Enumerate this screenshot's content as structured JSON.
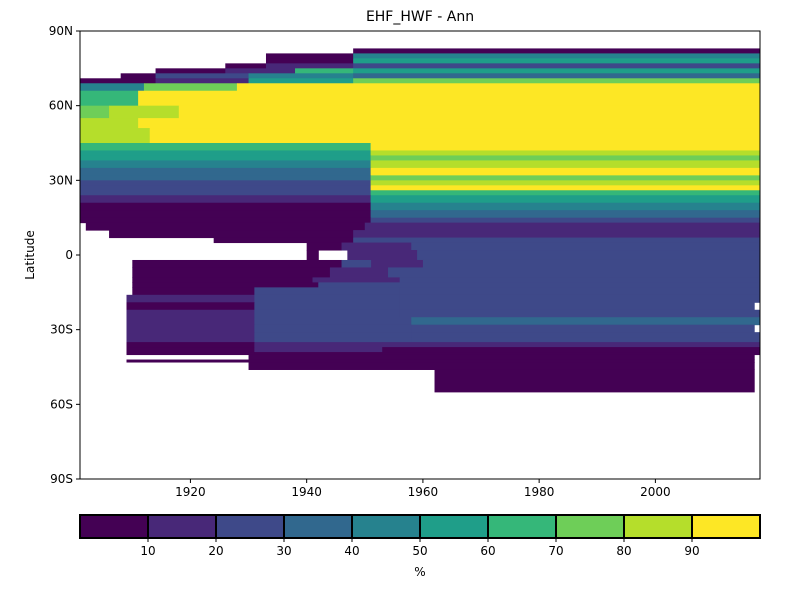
{
  "chart_data": {
    "type": "heatmap",
    "title": "EHF_HWF - Ann",
    "xlabel": "",
    "ylabel": "Latitude",
    "xlim": [
      1901,
      2018
    ],
    "ylim": [
      -90,
      90
    ],
    "x_ticks": [
      1920,
      1940,
      1960,
      1980,
      2000
    ],
    "y_ticks": [
      {
        "value": 90,
        "label": "90N"
      },
      {
        "value": 60,
        "label": "60N"
      },
      {
        "value": 30,
        "label": "30N"
      },
      {
        "value": 0,
        "label": "0"
      },
      {
        "value": -30,
        "label": "30S"
      },
      {
        "value": -60,
        "label": "60S"
      },
      {
        "value": -90,
        "label": "90S"
      }
    ],
    "grid": false,
    "colorbar": {
      "label": "%",
      "orientation": "horizontal",
      "range": [
        0,
        100
      ],
      "ticks": [
        10,
        20,
        30,
        40,
        50,
        60,
        70,
        80,
        90
      ],
      "colors": [
        "#440154",
        "#482878",
        "#3e4989",
        "#31688e",
        "#26828e",
        "#1f9e89",
        "#35b779",
        "#6ece58",
        "#b5de2b",
        "#fde725"
      ]
    },
    "rows": [
      {
        "lat_top": 83,
        "lat_bottom": 81,
        "segments": [
          {
            "x0": 1948,
            "x1": 2018,
            "v": 5
          }
        ]
      },
      {
        "lat_top": 81,
        "lat_bottom": 79,
        "segments": [
          {
            "x0": 1933,
            "x1": 1948,
            "v": 5
          },
          {
            "x0": 1948,
            "x1": 2018,
            "v": 45
          }
        ]
      },
      {
        "lat_top": 79,
        "lat_bottom": 77,
        "segments": [
          {
            "x0": 1933,
            "x1": 1948,
            "v": 5
          },
          {
            "x0": 1948,
            "x1": 2018,
            "v": 55
          }
        ]
      },
      {
        "lat_top": 77,
        "lat_bottom": 75,
        "segments": [
          {
            "x0": 1926,
            "x1": 1933,
            "v": 5
          },
          {
            "x0": 1933,
            "x1": 1948,
            "v": 15
          },
          {
            "x0": 1948,
            "x1": 2018,
            "v": 25
          }
        ]
      },
      {
        "lat_top": 75,
        "lat_bottom": 73,
        "segments": [
          {
            "x0": 1914,
            "x1": 1926,
            "v": 5
          },
          {
            "x0": 1926,
            "x1": 1938,
            "v": 15
          },
          {
            "x0": 1938,
            "x1": 1948,
            "v": 65
          },
          {
            "x0": 1948,
            "x1": 2018,
            "v": 55
          }
        ]
      },
      {
        "lat_top": 73,
        "lat_bottom": 71,
        "segments": [
          {
            "x0": 1908,
            "x1": 1914,
            "v": 5
          },
          {
            "x0": 1914,
            "x1": 1930,
            "v": 25
          },
          {
            "x0": 1930,
            "x1": 1948,
            "v": 45
          },
          {
            "x0": 1948,
            "x1": 2018,
            "v": 35
          }
        ]
      },
      {
        "lat_top": 71,
        "lat_bottom": 69,
        "segments": [
          {
            "x0": 1901,
            "x1": 1914,
            "v": 5
          },
          {
            "x0": 1914,
            "x1": 1930,
            "v": 15
          },
          {
            "x0": 1930,
            "x1": 1948,
            "v": 55
          },
          {
            "x0": 1948,
            "x1": 2018,
            "v": 75
          }
        ]
      },
      {
        "lat_top": 69,
        "lat_bottom": 66,
        "segments": [
          {
            "x0": 1901,
            "x1": 1912,
            "v": 45
          },
          {
            "x0": 1912,
            "x1": 1928,
            "v": 75
          },
          {
            "x0": 1928,
            "x1": 2018,
            "v": 95
          }
        ]
      },
      {
        "lat_top": 66,
        "lat_bottom": 60,
        "segments": [
          {
            "x0": 1901,
            "x1": 1911,
            "v": 65
          },
          {
            "x0": 1911,
            "x1": 2018,
            "v": 95
          }
        ]
      },
      {
        "lat_top": 60,
        "lat_bottom": 55,
        "segments": [
          {
            "x0": 1901,
            "x1": 1906,
            "v": 75
          },
          {
            "x0": 1906,
            "x1": 1918,
            "v": 85
          },
          {
            "x0": 1918,
            "x1": 2018,
            "v": 95
          }
        ]
      },
      {
        "lat_top": 55,
        "lat_bottom": 51,
        "segments": [
          {
            "x0": 1901,
            "x1": 1911,
            "v": 85
          },
          {
            "x0": 1911,
            "x1": 2018,
            "v": 95
          }
        ]
      },
      {
        "lat_top": 51,
        "lat_bottom": 45,
        "segments": [
          {
            "x0": 1901,
            "x1": 1913,
            "v": 85
          },
          {
            "x0": 1913,
            "x1": 2018,
            "v": 95
          }
        ]
      },
      {
        "lat_top": 45,
        "lat_bottom": 42,
        "segments": [
          {
            "x0": 1901,
            "x1": 1951,
            "v": 65
          },
          {
            "x0": 1951,
            "x1": 2018,
            "v": 95
          }
        ]
      },
      {
        "lat_top": 42,
        "lat_bottom": 40,
        "segments": [
          {
            "x0": 1901,
            "x1": 1951,
            "v": 55
          },
          {
            "x0": 1951,
            "x1": 2018,
            "v": 85
          }
        ]
      },
      {
        "lat_top": 40,
        "lat_bottom": 38,
        "segments": [
          {
            "x0": 1901,
            "x1": 1951,
            "v": 55
          },
          {
            "x0": 1951,
            "x1": 2018,
            "v": 75
          }
        ]
      },
      {
        "lat_top": 38,
        "lat_bottom": 35,
        "segments": [
          {
            "x0": 1901,
            "x1": 1951,
            "v": 45
          },
          {
            "x0": 1951,
            "x1": 2018,
            "v": 85
          }
        ]
      },
      {
        "lat_top": 35,
        "lat_bottom": 32,
        "segments": [
          {
            "x0": 1901,
            "x1": 1951,
            "v": 35
          },
          {
            "x0": 1951,
            "x1": 2018,
            "v": 95
          }
        ]
      },
      {
        "lat_top": 32,
        "lat_bottom": 30,
        "segments": [
          {
            "x0": 1901,
            "x1": 1951,
            "v": 35
          },
          {
            "x0": 1951,
            "x1": 2018,
            "v": 75
          }
        ]
      },
      {
        "lat_top": 30,
        "lat_bottom": 28,
        "segments": [
          {
            "x0": 1901,
            "x1": 1951,
            "v": 25
          },
          {
            "x0": 1951,
            "x1": 2018,
            "v": 85
          }
        ]
      },
      {
        "lat_top": 28,
        "lat_bottom": 26,
        "segments": [
          {
            "x0": 1901,
            "x1": 1951,
            "v": 25
          },
          {
            "x0": 1951,
            "x1": 2018,
            "v": 95
          }
        ]
      },
      {
        "lat_top": 26,
        "lat_bottom": 24,
        "segments": [
          {
            "x0": 1901,
            "x1": 1951,
            "v": 25
          },
          {
            "x0": 1951,
            "x1": 2018,
            "v": 65
          }
        ]
      },
      {
        "lat_top": 24,
        "lat_bottom": 21,
        "segments": [
          {
            "x0": 1901,
            "x1": 1951,
            "v": 15
          },
          {
            "x0": 1951,
            "x1": 2018,
            "v": 55
          }
        ]
      },
      {
        "lat_top": 21,
        "lat_bottom": 18,
        "segments": [
          {
            "x0": 1901,
            "x1": 1951,
            "v": 5
          },
          {
            "x0": 1951,
            "x1": 2018,
            "v": 45
          }
        ]
      },
      {
        "lat_top": 18,
        "lat_bottom": 15,
        "segments": [
          {
            "x0": 1901,
            "x1": 1951,
            "v": 5
          },
          {
            "x0": 1951,
            "x1": 2018,
            "v": 35
          }
        ]
      },
      {
        "lat_top": 15,
        "lat_bottom": 13,
        "segments": [
          {
            "x0": 1901,
            "x1": 1951,
            "v": 5
          },
          {
            "x0": 1951,
            "x1": 2018,
            "v": 25
          }
        ]
      },
      {
        "lat_top": 13,
        "lat_bottom": 10,
        "segments": [
          {
            "x0": 1902,
            "x1": 1950,
            "v": 5
          },
          {
            "x0": 1950,
            "x1": 2018,
            "v": 15
          }
        ]
      },
      {
        "lat_top": 10,
        "lat_bottom": 7,
        "segments": [
          {
            "x0": 1906,
            "x1": 1948,
            "v": 5
          },
          {
            "x0": 1948,
            "x1": 2018,
            "v": 15
          }
        ]
      },
      {
        "lat_top": 7,
        "lat_bottom": 5,
        "segments": [
          {
            "x0": 1924,
            "x1": 1948,
            "v": 5
          },
          {
            "x0": 1948,
            "x1": 2018,
            "v": 25
          }
        ]
      },
      {
        "lat_top": 5,
        "lat_bottom": 2,
        "segments": [
          {
            "x0": 1940,
            "x1": 1946,
            "v": 5
          },
          {
            "x0": 1946,
            "x1": 1958,
            "v": 15
          },
          {
            "x0": 1958,
            "x1": 2018,
            "v": 25
          }
        ]
      },
      {
        "lat_top": 2,
        "lat_bottom": -2,
        "segments": [
          {
            "x0": 1940,
            "x1": 1942,
            "v": 5
          },
          {
            "x0": 1947,
            "x1": 1959,
            "v": 15
          },
          {
            "x0": 1959,
            "x1": 2018,
            "v": 25
          }
        ]
      },
      {
        "lat_top": -2,
        "lat_bottom": -5,
        "segments": [
          {
            "x0": 1949,
            "x1": 1960,
            "v": 15
          },
          {
            "x0": 1960,
            "x1": 2018,
            "v": 25
          }
        ]
      },
      {
        "lat_top": -2,
        "lat_bottom": -5,
        "segments": [
          {
            "x0": 1910,
            "x1": 1946,
            "v": 5
          },
          {
            "x0": 1946,
            "x1": 1951,
            "v": 25
          }
        ]
      },
      {
        "lat_top": -5,
        "lat_bottom": -9,
        "segments": [
          {
            "x0": 1910,
            "x1": 1944,
            "v": 5
          },
          {
            "x0": 1944,
            "x1": 1954,
            "v": 15
          },
          {
            "x0": 1954,
            "x1": 2018,
            "v": 25
          }
        ]
      },
      {
        "lat_top": -9,
        "lat_bottom": -11,
        "segments": [
          {
            "x0": 1910,
            "x1": 1941,
            "v": 5
          },
          {
            "x0": 1941,
            "x1": 1956,
            "v": 15
          },
          {
            "x0": 1956,
            "x1": 2018,
            "v": 25
          }
        ]
      },
      {
        "lat_top": -11,
        "lat_bottom": -13,
        "segments": [
          {
            "x0": 1910,
            "x1": 1942,
            "v": 5
          },
          {
            "x0": 1942,
            "x1": 1954,
            "v": 25
          },
          {
            "x0": 1954,
            "x1": 2018,
            "v": 25
          }
        ]
      },
      {
        "lat_top": -13,
        "lat_bottom": -16,
        "segments": [
          {
            "x0": 1910,
            "x1": 1931,
            "v": 5
          },
          {
            "x0": 1931,
            "x1": 1956,
            "v": 25
          },
          {
            "x0": 1956,
            "x1": 2018,
            "v": 25
          }
        ]
      },
      {
        "lat_top": -16,
        "lat_bottom": -19,
        "segments": [
          {
            "x0": 1909,
            "x1": 1931,
            "v": 15
          },
          {
            "x0": 1931,
            "x1": 1956,
            "v": 25
          },
          {
            "x0": 1956,
            "x1": 2018,
            "v": 25
          }
        ]
      },
      {
        "lat_top": -19,
        "lat_bottom": -22,
        "segments": [
          {
            "x0": 1909,
            "x1": 1931,
            "v": 5
          },
          {
            "x0": 1931,
            "x1": 1956,
            "v": 25
          },
          {
            "x0": 1956,
            "x1": 2017,
            "v": 25
          }
        ]
      },
      {
        "lat_top": -22,
        "lat_bottom": -25,
        "segments": [
          {
            "x0": 1909,
            "x1": 1931,
            "v": 15
          },
          {
            "x0": 1931,
            "x1": 1956,
            "v": 25
          },
          {
            "x0": 1956,
            "x1": 2018,
            "v": 25
          }
        ]
      },
      {
        "lat_top": -25,
        "lat_bottom": -28,
        "segments": [
          {
            "x0": 1909,
            "x1": 1931,
            "v": 15
          },
          {
            "x0": 1931,
            "x1": 1958,
            "v": 25
          },
          {
            "x0": 1958,
            "x1": 2018,
            "v": 35
          }
        ]
      },
      {
        "lat_top": -28,
        "lat_bottom": -31,
        "segments": [
          {
            "x0": 1909,
            "x1": 1931,
            "v": 15
          },
          {
            "x0": 1931,
            "x1": 1958,
            "v": 25
          },
          {
            "x0": 1958,
            "x1": 2017,
            "v": 25
          }
        ]
      },
      {
        "lat_top": -31,
        "lat_bottom": -33,
        "segments": [
          {
            "x0": 1909,
            "x1": 1931,
            "v": 15
          },
          {
            "x0": 1931,
            "x1": 1958,
            "v": 25
          },
          {
            "x0": 1958,
            "x1": 2018,
            "v": 25
          }
        ]
      },
      {
        "lat_top": -33,
        "lat_bottom": -35,
        "segments": [
          {
            "x0": 1909,
            "x1": 1931,
            "v": 15
          },
          {
            "x0": 1931,
            "x1": 1958,
            "v": 25
          },
          {
            "x0": 1958,
            "x1": 2018,
            "v": 25
          }
        ]
      },
      {
        "lat_top": -35,
        "lat_bottom": -37,
        "segments": [
          {
            "x0": 1909,
            "x1": 1931,
            "v": 5
          },
          {
            "x0": 1931,
            "x1": 1953,
            "v": 15
          },
          {
            "x0": 1953,
            "x1": 2018,
            "v": 15
          }
        ]
      },
      {
        "lat_top": -37,
        "lat_bottom": -39,
        "segments": [
          {
            "x0": 1909,
            "x1": 1931,
            "v": 5
          },
          {
            "x0": 1931,
            "x1": 1953,
            "v": 15
          },
          {
            "x0": 1953,
            "x1": 2018,
            "v": 5
          }
        ]
      },
      {
        "lat_top": -39,
        "lat_bottom": -40,
        "segments": [
          {
            "x0": 1909,
            "x1": 1931,
            "v": 5
          },
          {
            "x0": 1931,
            "x1": 2018,
            "v": 5
          }
        ]
      },
      {
        "lat_top": -40,
        "lat_bottom": -42,
        "segments": [
          {
            "x0": 1930,
            "x1": 2017,
            "v": 5
          }
        ]
      },
      {
        "lat_top": -42,
        "lat_bottom": -43,
        "segments": [
          {
            "x0": 1909,
            "x1": 1930,
            "v": 5
          },
          {
            "x0": 1930,
            "x1": 2017,
            "v": 5
          }
        ]
      },
      {
        "lat_top": -43,
        "lat_bottom": -46,
        "segments": [
          {
            "x0": 1930,
            "x1": 2017,
            "v": 5
          }
        ]
      },
      {
        "lat_top": -46,
        "lat_bottom": -55,
        "segments": [
          {
            "x0": 1962,
            "x1": 2017,
            "v": 5
          }
        ]
      }
    ]
  }
}
